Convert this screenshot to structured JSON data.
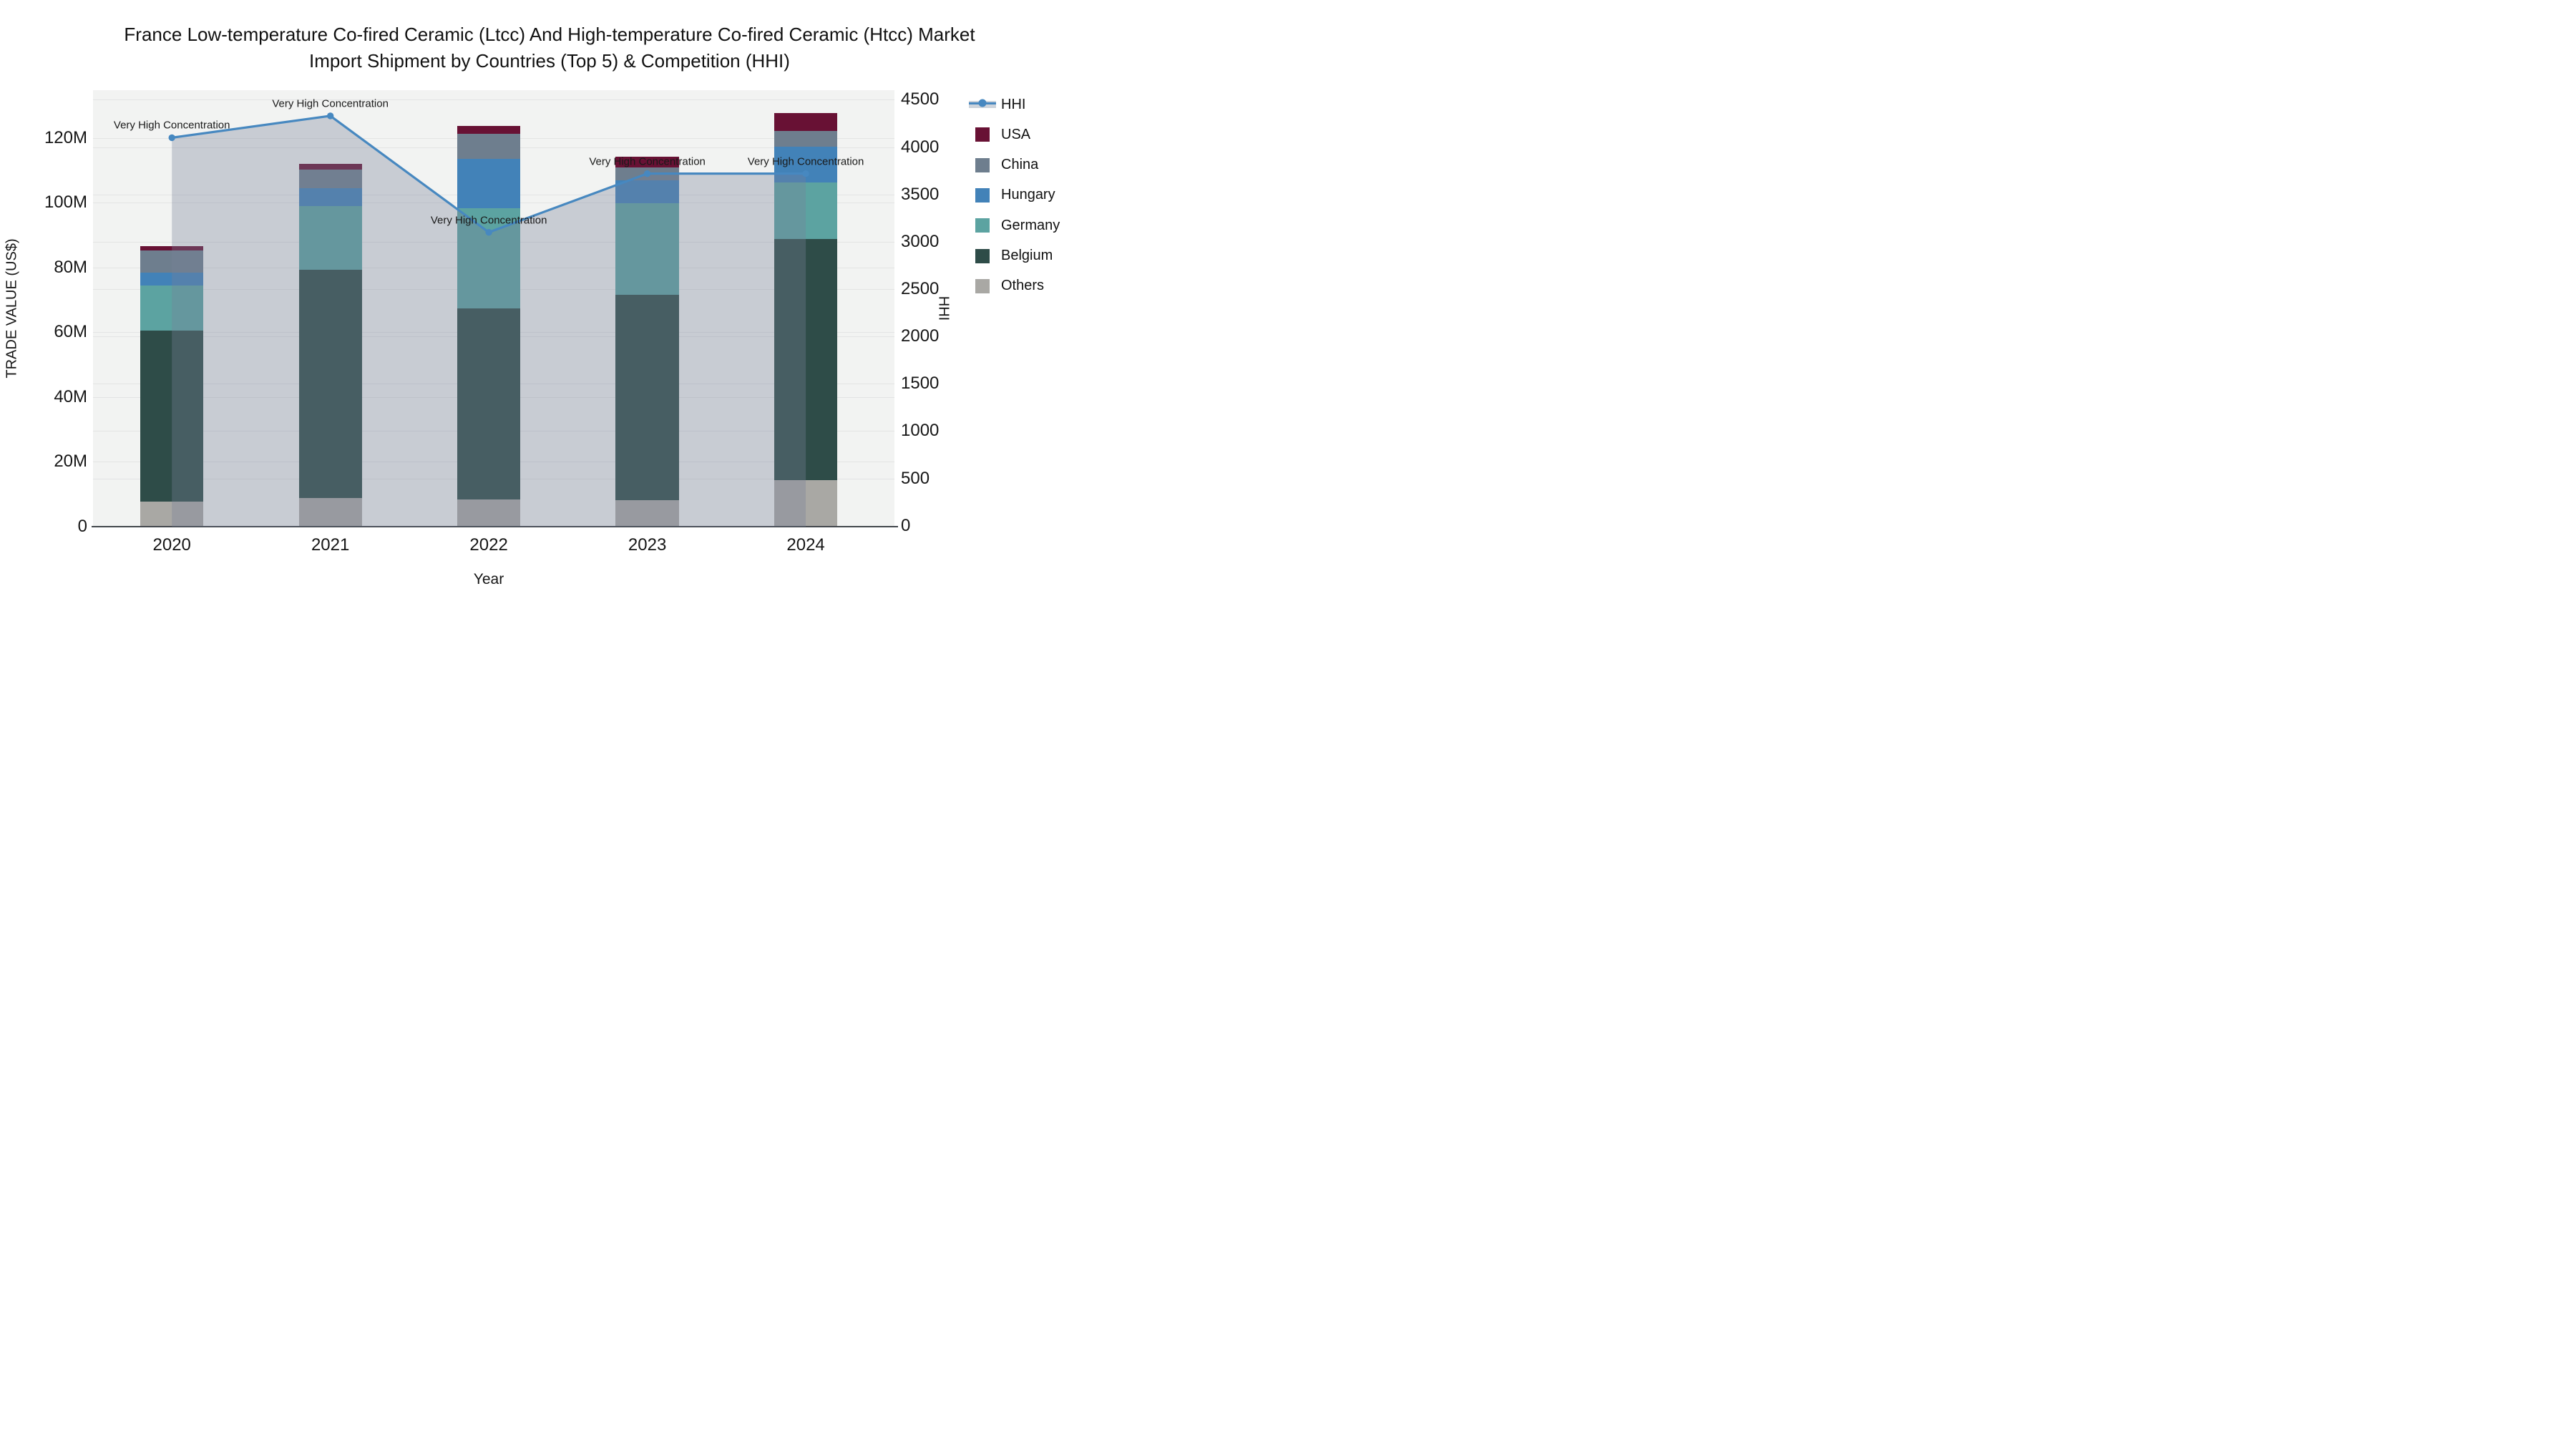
{
  "title_line1": "France Low-temperature Co-fired Ceramic (Ltcc) And High-temperature Co-fired Ceramic (Htcc) Market",
  "title_line2": "Import Shipment by Countries (Top 5) & Competition (HHI)",
  "xlabel": "Year",
  "ylabel_left": "TRADE VALUE (US$)",
  "ylabel_right": "HHI",
  "annotation_text": "Very High Concentration",
  "colors": {
    "background_plot": "#f2f3f2",
    "gridline": "#e3e4e4",
    "hhi_line": "#4788c0",
    "hhi_fill": "rgba(119,130,151,0.34)",
    "USA": "#681134",
    "China": "#6e7e8e",
    "Hungary": "#4282b8",
    "Germany": "#5ca3a1",
    "Belgium": "#2e4c48",
    "Others": "#a9a8a4"
  },
  "legend": [
    {
      "label": "HHI",
      "type": "line"
    },
    {
      "label": "USA",
      "type": "swatch"
    },
    {
      "label": "China",
      "type": "swatch"
    },
    {
      "label": "Hungary",
      "type": "swatch"
    },
    {
      "label": "Germany",
      "type": "swatch"
    },
    {
      "label": "Belgium",
      "type": "swatch"
    },
    {
      "label": "Others",
      "type": "swatch"
    }
  ],
  "chart_data": {
    "type": "combo-stacked-bar-line",
    "categories": [
      "2020",
      "2021",
      "2022",
      "2023",
      "2024"
    ],
    "bar_series": [
      {
        "name": "Others",
        "values": [
          7.7,
          8.9,
          8.3,
          8.2,
          14.4
        ]
      },
      {
        "name": "Belgium",
        "values": [
          52.9,
          70.5,
          59.0,
          63.4,
          74.4
        ]
      },
      {
        "name": "Germany",
        "values": [
          13.9,
          19.6,
          31.1,
          28.3,
          17.5
        ]
      },
      {
        "name": "Hungary",
        "values": [
          3.9,
          5.4,
          15.1,
          7.1,
          11.0
        ]
      },
      {
        "name": "China",
        "values": [
          6.9,
          5.8,
          7.8,
          3.8,
          4.8
        ]
      },
      {
        "name": "USA",
        "values": [
          1.3,
          1.7,
          2.4,
          3.5,
          5.5
        ]
      }
    ],
    "bar_totals": [
      86.6,
      111.9,
      123.7,
      114.3,
      127.6
    ],
    "line_series": {
      "name": "HHI",
      "values": [
        4100,
        4330,
        3100,
        3720,
        3720
      ],
      "axis": "right",
      "fill": "tozeroy"
    },
    "annotations": [
      "Very High Concentration",
      "Very High Concentration",
      "Very High Concentration",
      "Very High Concentration",
      "Very High Concentration"
    ],
    "title": "France Low-temperature Co-fired Ceramic (Ltcc) And High-temperature Co-fired Ceramic (Htcc) Market Import Shipment by Countries (Top 5) & Competition (HHI)",
    "xlabel": "Year",
    "ylabel": "TRADE VALUE (US$)",
    "y2label": "HHI",
    "ylim": [
      0,
      134.7
    ],
    "y2lim": [
      0,
      4610
    ],
    "yticks": [
      "0",
      "20M",
      "40M",
      "60M",
      "80M",
      "100M",
      "120M"
    ],
    "ytick_values": [
      0,
      20,
      40,
      60,
      80,
      100,
      120
    ],
    "y2tick_values": [
      0,
      500,
      1000,
      1500,
      2000,
      2500,
      3000,
      3500,
      4000,
      4500
    ],
    "grid": true,
    "legend_position": "right"
  }
}
